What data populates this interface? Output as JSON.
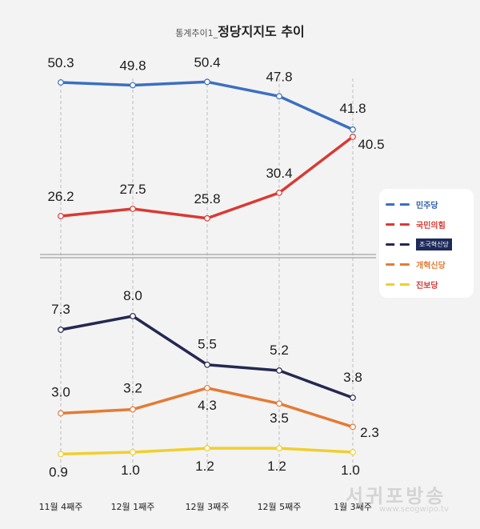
{
  "title": {
    "prefix": "통계추이1_",
    "main": "정당지지도 추이"
  },
  "watermark": {
    "name": "서귀포방송",
    "url": "www.seogwipo.tv"
  },
  "chart_data": {
    "type": "line",
    "categories": [
      "11월 4째주",
      "12월 1째주",
      "12월 3째주",
      "12월 5째주",
      "1월 3째주"
    ],
    "axis_break": true,
    "grid": "vertical dashed",
    "legend_position": "right",
    "series": [
      {
        "name": "민주당",
        "color": "#3b6fc0",
        "values": [
          50.3,
          49.8,
          50.4,
          47.8,
          41.8
        ],
        "labels": [
          "50.3",
          "49.8",
          "50.4",
          "47.8",
          "41.8"
        ]
      },
      {
        "name": "국민의힘",
        "color": "#d83a33",
        "values": [
          26.2,
          27.5,
          25.8,
          30.4,
          40.5
        ],
        "labels": [
          "26.2",
          "27.5",
          "25.8",
          "30.4",
          "40.5"
        ]
      },
      {
        "name": "조국혁신당",
        "color": "#252852",
        "values": [
          7.3,
          8.0,
          5.5,
          5.2,
          3.8
        ],
        "labels": [
          "7.3",
          "8.0",
          "5.5",
          "5.2",
          "3.8"
        ]
      },
      {
        "name": "개혁신당",
        "color": "#e37b34",
        "values": [
          3.0,
          3.2,
          4.3,
          3.5,
          2.3
        ],
        "labels": [
          "3.0",
          "3.2",
          "4.3",
          "3.5",
          "2.3"
        ]
      },
      {
        "name": "진보당",
        "color": "#f0cf2e",
        "values": [
          0.9,
          1.0,
          1.2,
          1.2,
          1.0
        ],
        "labels": [
          "0.9",
          "1.0",
          "1.2",
          "1.2",
          "1.0"
        ]
      }
    ]
  }
}
